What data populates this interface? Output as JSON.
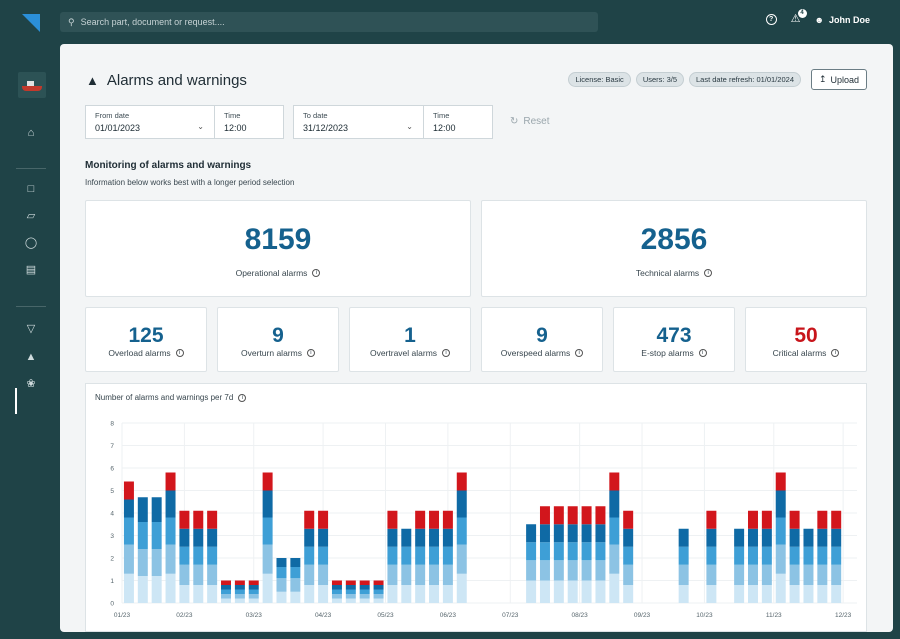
{
  "header": {
    "search_placeholder": "Search part, document or request....",
    "notification_count": "4",
    "user_name": "John Doe",
    "help_icon": "help-icon"
  },
  "sidebar": {
    "icons": [
      "home-icon",
      "chat-icon",
      "box-icon",
      "crane-operator-icon",
      "document-icon",
      "trophy-icon",
      "alarm-icon",
      "leaf-icon"
    ]
  },
  "page": {
    "title": "Alarms and warnings",
    "pills": [
      "License: Basic",
      "Users: 3/5",
      "Last date refresh: 01/01/2024"
    ],
    "upload_label": "Upload",
    "reset_label": "Reset"
  },
  "filters": {
    "from_date_label": "From date",
    "from_date_value": "01/01/2023",
    "from_time_label": "Time",
    "from_time_value": "12:00",
    "to_date_label": "To date",
    "to_date_value": "31/12/2023",
    "to_time_label": "Time",
    "to_time_value": "12:00"
  },
  "monitoring": {
    "title": "Monitoring of alarms and warnings",
    "subtitle": "Information below works best with a longer period selection"
  },
  "totals": {
    "operational_value": "8159",
    "operational_label": "Operational alarms",
    "technical_value": "2856",
    "technical_label": "Technical alarms"
  },
  "kpis": [
    {
      "value": "125",
      "label": "Overload alarms"
    },
    {
      "value": "9",
      "label": "Overturn alarms"
    },
    {
      "value": "1",
      "label": "Overtravel alarms"
    },
    {
      "value": "9",
      "label": "Overspeed alarms"
    },
    {
      "value": "473",
      "label": "E-stop alarms"
    },
    {
      "value": "50",
      "label": "Critical alarms"
    }
  ],
  "colors": {
    "primary_number": "#15618e",
    "critical_number": "#c8151b",
    "stack": [
      "#cde6f5",
      "#8cc3e4",
      "#3e9fd6",
      "#0f6aa5",
      "#d2161c"
    ]
  },
  "chart_data": {
    "type": "bar",
    "title": "Number of alarms and warnings per 7d",
    "ylim": [
      0,
      8
    ],
    "yticks": [
      0,
      1,
      2,
      3,
      4,
      5,
      6,
      7,
      8
    ],
    "xtick_labels": [
      "01/23",
      "02/23",
      "03/23",
      "04/23",
      "05/23",
      "06/23",
      "07/23",
      "08/23",
      "09/23",
      "10/23",
      "11/23",
      "12/23"
    ],
    "xtick_weeks": [
      0,
      4.5,
      9.5,
      14.5,
      19,
      23.5,
      28,
      33,
      37.5,
      42,
      47,
      52
    ],
    "grid": true,
    "weeks": 53,
    "stacks": [
      [
        1.3,
        1.3,
        1.2,
        0.8,
        0.8
      ],
      [
        1.2,
        1.2,
        1.2,
        1.1,
        0
      ],
      [
        1.2,
        1.2,
        1.2,
        1.1,
        0
      ],
      [
        1.3,
        1.3,
        1.2,
        1.2,
        0.8
      ],
      [
        0.8,
        0.9,
        0.8,
        0.8,
        0.8
      ],
      [
        0.8,
        0.9,
        0.8,
        0.8,
        0.8
      ],
      [
        0.8,
        0.9,
        0.8,
        0.8,
        0.8
      ],
      [
        0.2,
        0.2,
        0.2,
        0.2,
        0.2
      ],
      [
        0.2,
        0.2,
        0.2,
        0.2,
        0.2
      ],
      [
        0.2,
        0.2,
        0.2,
        0.2,
        0.2
      ],
      [
        1.3,
        1.3,
        1.2,
        1.2,
        0.8
      ],
      [
        0.5,
        0.6,
        0.5,
        0.4,
        0
      ],
      [
        0.5,
        0.6,
        0.5,
        0.4,
        0
      ],
      [
        0.8,
        0.9,
        0.8,
        0.8,
        0.8
      ],
      [
        0.8,
        0.9,
        0.8,
        0.8,
        0.8
      ],
      [
        0.2,
        0.2,
        0.2,
        0.2,
        0.2
      ],
      [
        0.2,
        0.2,
        0.2,
        0.2,
        0.2
      ],
      [
        0.2,
        0.2,
        0.2,
        0.2,
        0.2
      ],
      [
        0.2,
        0.2,
        0.2,
        0.2,
        0.2
      ],
      [
        0.8,
        0.9,
        0.8,
        0.8,
        0.8
      ],
      [
        0.8,
        0.9,
        0.8,
        0.8,
        0
      ],
      [
        0.8,
        0.9,
        0.8,
        0.8,
        0.8
      ],
      [
        0.8,
        0.9,
        0.8,
        0.8,
        0.8
      ],
      [
        0.8,
        0.9,
        0.8,
        0.8,
        0.8
      ],
      [
        1.3,
        1.3,
        1.2,
        1.2,
        0.8
      ],
      [
        0,
        0,
        0,
        0,
        0
      ],
      [
        0,
        0,
        0,
        0,
        0
      ],
      [
        0,
        0,
        0,
        0,
        0
      ],
      [
        0,
        0,
        0,
        0,
        0
      ],
      [
        1,
        0.9,
        0.8,
        0.8,
        0
      ],
      [
        1,
        0.9,
        0.8,
        0.8,
        0.8
      ],
      [
        1,
        0.9,
        0.8,
        0.8,
        0.8
      ],
      [
        1,
        0.9,
        0.8,
        0.8,
        0.8
      ],
      [
        1,
        0.9,
        0.8,
        0.8,
        0.8
      ],
      [
        1,
        0.9,
        0.8,
        0.8,
        0.8
      ],
      [
        1.3,
        1.3,
        1.2,
        1.2,
        0.8
      ],
      [
        0.8,
        0.9,
        0.8,
        0.8,
        0.8
      ],
      [
        0,
        0,
        0,
        0,
        0
      ],
      [
        0,
        0,
        0,
        0,
        0
      ],
      [
        0,
        0,
        0,
        0,
        0
      ],
      [
        0.8,
        0.9,
        0.8,
        0.8,
        0
      ],
      [
        0,
        0,
        0,
        0,
        0
      ],
      [
        0.8,
        0.9,
        0.8,
        0.8,
        0.8
      ],
      [
        0,
        0,
        0,
        0,
        0
      ],
      [
        0.8,
        0.9,
        0.8,
        0.8,
        0
      ],
      [
        0.8,
        0.9,
        0.8,
        0.8,
        0.8
      ],
      [
        0.8,
        0.9,
        0.8,
        0.8,
        0.8
      ],
      [
        1.3,
        1.3,
        1.2,
        1.2,
        0.8
      ],
      [
        0.8,
        0.9,
        0.8,
        0.8,
        0.8
      ],
      [
        0.8,
        0.9,
        0.8,
        0.8,
        0
      ],
      [
        0.8,
        0.9,
        0.8,
        0.8,
        0.8
      ],
      [
        0.8,
        0.9,
        0.8,
        0.8,
        0.8
      ],
      [
        0,
        0,
        0,
        0,
        0
      ]
    ]
  }
}
